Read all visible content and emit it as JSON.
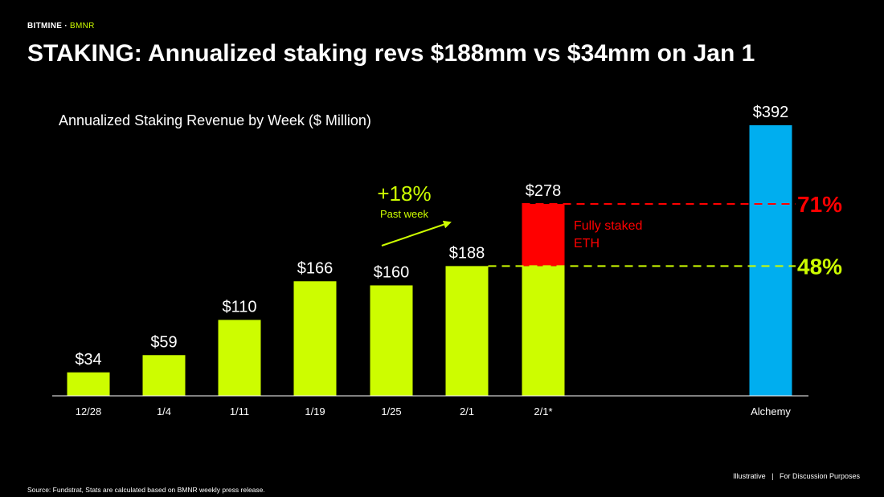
{
  "brand": {
    "company": "BITMINE",
    "separator": "·",
    "ticker": "BMNR"
  },
  "headline": "STAKING: Annualized staking revs $188mm vs $34mm on Jan 1",
  "footer": {
    "note": "Illustrative   |   For Discussion Purposes",
    "source": "Source: Fundstrat, Stats are calculated based on BMNR weekly press release."
  },
  "colors": {
    "accent": "#cdfd00",
    "red": "#ff0000",
    "blue": "#00aeef",
    "background": "#000000"
  },
  "chart_data": {
    "type": "bar",
    "title": "Annualized Staking Revenue by Week ($ Million)",
    "xlabel": "",
    "ylabel": "",
    "ylim": [
      0,
      392
    ],
    "grid": false,
    "categories": [
      "12/28",
      "1/4",
      "1/11",
      "1/19",
      "1/25",
      "2/1",
      "2/1*",
      "Alchemy"
    ],
    "values": [
      34,
      59,
      110,
      166,
      160,
      188,
      278,
      392
    ],
    "value_labels": [
      "$34",
      "$59",
      "$110",
      "$166",
      "$160",
      "$188",
      "$278",
      "$392"
    ],
    "stacked_bar": {
      "category": "2/1*",
      "base_value": 188,
      "top_value": 278,
      "top_segment_label": "Fully staked ETH"
    },
    "reference_lines": [
      {
        "value": 278,
        "label": "71%",
        "color": "#ff0000"
      },
      {
        "value": 188,
        "label": "48%",
        "color": "#cdfd00"
      }
    ],
    "annotations": [
      {
        "text": "+18%",
        "subtext": "Past week"
      }
    ]
  }
}
